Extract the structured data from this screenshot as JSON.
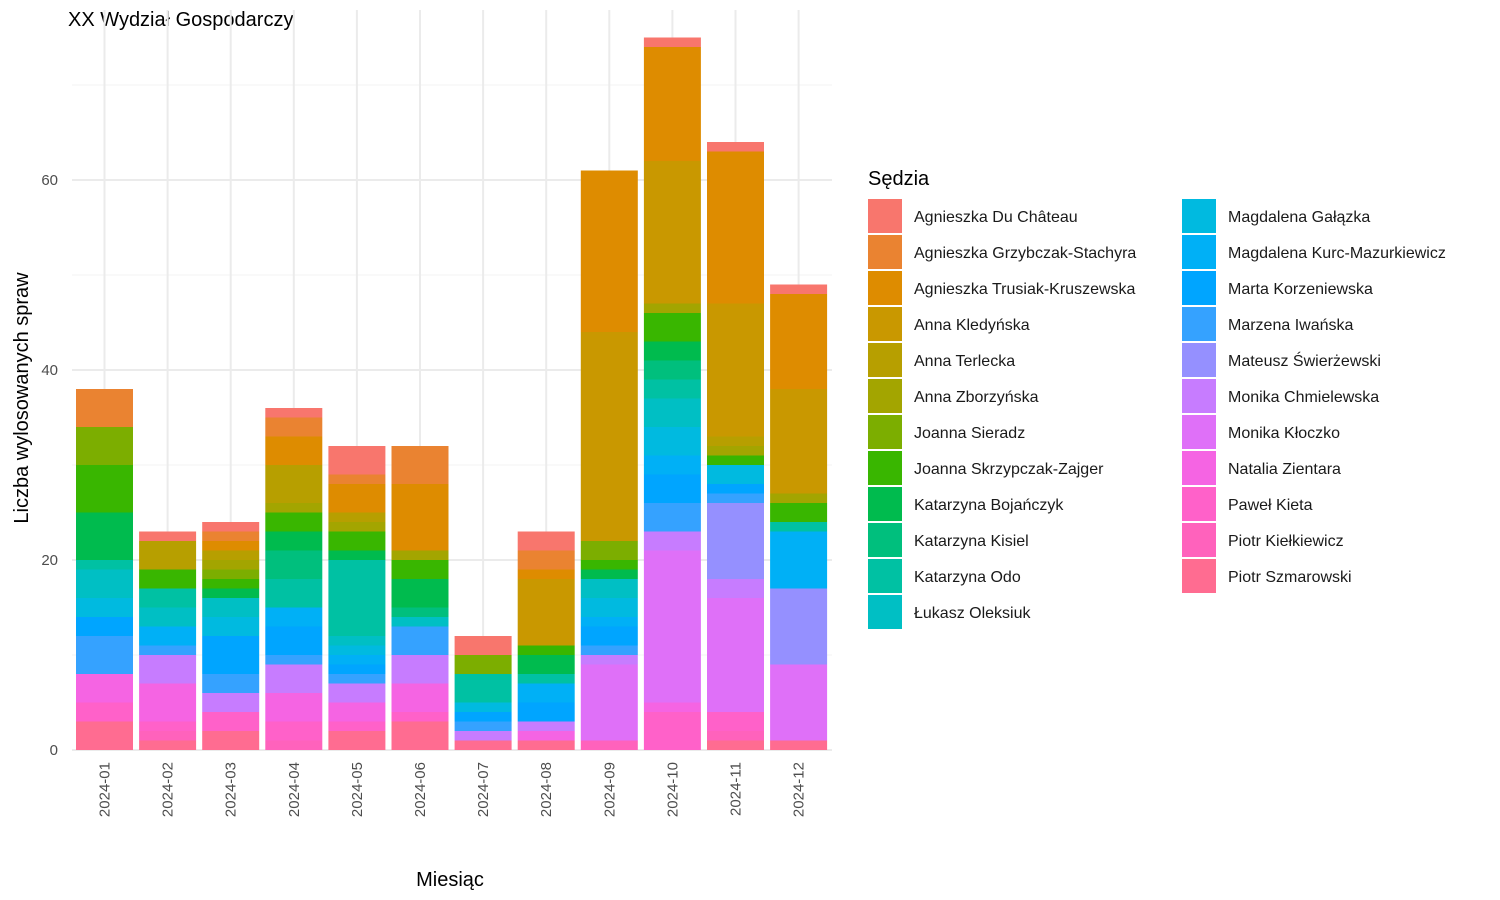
{
  "chart_data": {
    "type": "bar",
    "stacked": true,
    "title": "XX Wydział Gospodarczy",
    "xlabel": "Miesiąc",
    "ylabel": "Liczba wylosowanych spraw",
    "ylim": [
      0,
      75
    ],
    "yticks": [
      0,
      20,
      40,
      60
    ],
    "grid": true,
    "legend_title": "Sędzia",
    "legend_position": "right",
    "categories": [
      "2024-01",
      "2024-02",
      "2024-03",
      "2024-04",
      "2024-05",
      "2024-06",
      "2024-07",
      "2024-08",
      "2024-09",
      "2024-10",
      "2024-11",
      "2024-12"
    ],
    "series": [
      {
        "name": "Agnieszka Du Château",
        "color": "#F8766D",
        "values": [
          0,
          1,
          1,
          1,
          3,
          0,
          2,
          2,
          0,
          1,
          1,
          1
        ]
      },
      {
        "name": "Agnieszka Grzybczak-Stachyra",
        "color": "#EA8331",
        "values": [
          4,
          0,
          1,
          2,
          1,
          4,
          0,
          2,
          0,
          0,
          0,
          0
        ]
      },
      {
        "name": "Agnieszka Trusiak-Kruszewska",
        "color": "#DE8C00",
        "values": [
          0,
          0,
          1,
          3,
          3,
          7,
          0,
          1,
          17,
          12,
          16,
          10
        ]
      },
      {
        "name": "Anna Kledyńska",
        "color": "#C99800",
        "values": [
          0,
          0,
          0,
          0,
          0,
          0,
          0,
          7,
          22,
          15,
          14,
          11
        ]
      },
      {
        "name": "Anna Terlecka",
        "color": "#B79F00",
        "values": [
          0,
          3,
          1,
          4,
          1,
          0,
          0,
          0,
          0,
          0,
          1,
          0
        ]
      },
      {
        "name": "Anna Zborzyńska",
        "color": "#A3A500",
        "values": [
          0,
          0,
          1,
          1,
          1,
          1,
          0,
          0,
          0,
          1,
          1,
          1
        ]
      },
      {
        "name": "Joanna Sieradz",
        "color": "#7CAE00",
        "values": [
          4,
          0,
          1,
          0,
          0,
          0,
          2,
          0,
          2,
          0,
          0,
          0
        ]
      },
      {
        "name": "Joanna Skrzypczak-Zajger",
        "color": "#39B600",
        "values": [
          5,
          2,
          1,
          2,
          2,
          2,
          0,
          1,
          1,
          3,
          1,
          2
        ]
      },
      {
        "name": "Katarzyna Bojańczyk",
        "color": "#00BB4E",
        "values": [
          5,
          0,
          1,
          2,
          1,
          3,
          0,
          2,
          1,
          2,
          0,
          0
        ]
      },
      {
        "name": "Katarzyna Kisiel",
        "color": "#00BF7D",
        "values": [
          0,
          0,
          0,
          3,
          0,
          1,
          0,
          0,
          0,
          2,
          0,
          0
        ]
      },
      {
        "name": "Katarzyna Odo",
        "color": "#00C1A3",
        "values": [
          1,
          2,
          0,
          3,
          8,
          0,
          3,
          1,
          0,
          2,
          0,
          1
        ]
      },
      {
        "name": "Łukasz Oleksiuk",
        "color": "#00BFC4",
        "values": [
          3,
          2,
          2,
          0,
          1,
          1,
          0,
          0,
          2,
          3,
          0,
          0
        ]
      },
      {
        "name": "Magdalena Gałązka",
        "color": "#00BAE0",
        "values": [
          2,
          0,
          2,
          0,
          1,
          0,
          1,
          0,
          2,
          3,
          2,
          0
        ]
      },
      {
        "name": "Magdalena Kurc-Mazurkiewicz",
        "color": "#00B0F6",
        "values": [
          0,
          2,
          0,
          2,
          1,
          0,
          0,
          2,
          1,
          2,
          0,
          6
        ]
      },
      {
        "name": "Marta Korzeniewska",
        "color": "#00A5FF",
        "values": [
          2,
          0,
          4,
          3,
          1,
          0,
          1,
          2,
          2,
          3,
          1,
          0
        ]
      },
      {
        "name": "Marzena Iwańska",
        "color": "#35A2FF",
        "values": [
          4,
          1,
          2,
          1,
          1,
          3,
          1,
          0,
          1,
          3,
          1,
          0
        ]
      },
      {
        "name": "Mateusz Świerżewski",
        "color": "#9590FF",
        "values": [
          0,
          0,
          0,
          0,
          0,
          0,
          0,
          0,
          0,
          0,
          8,
          8
        ]
      },
      {
        "name": "Monika Chmielewska",
        "color": "#C77CFF",
        "values": [
          0,
          3,
          2,
          3,
          2,
          3,
          1,
          1,
          1,
          2,
          2,
          0
        ]
      },
      {
        "name": "Monika Kłoczko",
        "color": "#DF70F8",
        "values": [
          0,
          0,
          0,
          0,
          0,
          0,
          0,
          0,
          8,
          16,
          12,
          8
        ]
      },
      {
        "name": "Natalia Zientara",
        "color": "#F564E3",
        "values": [
          3,
          4,
          0,
          3,
          2,
          3,
          0,
          1,
          0,
          1,
          0,
          0
        ]
      },
      {
        "name": "Paweł Kieta",
        "color": "#FF61C9",
        "values": [
          2,
          1,
          2,
          2,
          1,
          1,
          0,
          0,
          0,
          4,
          2,
          0
        ]
      },
      {
        "name": "Piotr Kiełkiewicz",
        "color": "#FF62BC",
        "values": [
          0,
          1,
          0,
          1,
          0,
          0,
          0,
          0,
          1,
          0,
          1,
          0
        ]
      },
      {
        "name": "Piotr Szmarowski",
        "color": "#FF6C91",
        "values": [
          3,
          1,
          2,
          0,
          2,
          3,
          1,
          1,
          0,
          0,
          1,
          1
        ]
      }
    ]
  }
}
